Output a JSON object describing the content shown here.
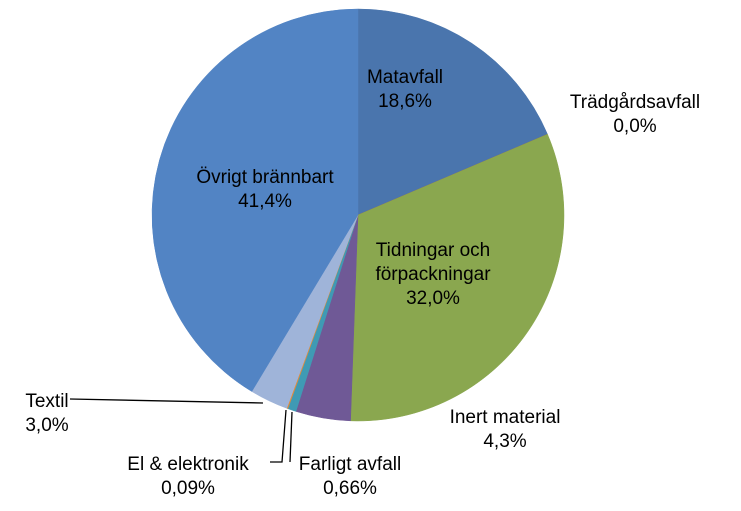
{
  "chart_data": {
    "type": "pie",
    "categories": [
      "Matavfall",
      "Trädgårdsavfall",
      "Tidningar och förpackningar",
      "Inert material",
      "Farligt avfall",
      "El & elektronik",
      "Textil",
      "Övrigt brännbart"
    ],
    "values": [
      18.6,
      0.0,
      32.0,
      4.3,
      0.66,
      0.09,
      3.0,
      41.4
    ],
    "value_labels": [
      "18,6%",
      "0,0%",
      "32,0%",
      "4,3%",
      "0,66%",
      "0,09%",
      "3,0%",
      "41,4%"
    ],
    "colors": [
      "#4a75ad",
      "#b04a47",
      "#8aa74f",
      "#6f5996",
      "#3f9ab4",
      "#e08b3a",
      "#9fb4d9",
      "#5284c4"
    ]
  }
}
